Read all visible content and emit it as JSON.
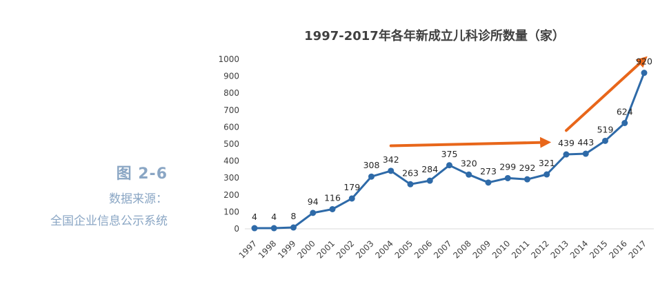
{
  "caption": {
    "figure_label": "图 2-6",
    "source_label": "数据来源：",
    "source_value": "全国企业信息公示系统"
  },
  "chart_data": {
    "type": "line",
    "title": "1997-2017年各年新成立儿科诊所数量（家）",
    "xlabel": "",
    "ylabel": "",
    "categories": [
      "1997",
      "1998",
      "1999",
      "2000",
      "2001",
      "2002",
      "2003",
      "2004",
      "2005",
      "2006",
      "2007",
      "2008",
      "2009",
      "2010",
      "2011",
      "2012",
      "2013",
      "2014",
      "2015",
      "2016",
      "2017"
    ],
    "series": [
      {
        "values": [
          4,
          4,
          8,
          94,
          116,
          179,
          308,
          342,
          263,
          284,
          375,
          320,
          273,
          299,
          292,
          321,
          439,
          443,
          519,
          624,
          920
        ]
      }
    ],
    "ylim": [
      0,
      1000
    ],
    "yticks": [
      0,
      100,
      200,
      300,
      400,
      500,
      600,
      700,
      800,
      900,
      1000
    ],
    "grid": false,
    "legend": "none",
    "data_labels": true,
    "annotations": [
      {
        "type": "trend-arrow",
        "from_year": "2004",
        "to_year": "2012",
        "from_value": 490,
        "to_value": 510,
        "color": "#e8661a"
      },
      {
        "type": "trend-arrow",
        "from_year": "2013",
        "to_year": "2017",
        "from_value": 580,
        "to_value": 1000,
        "color": "#e8661a"
      }
    ],
    "colors": {
      "line": "#2e6aa8",
      "marker": "#2e6aa8",
      "arrow": "#e8661a"
    }
  }
}
